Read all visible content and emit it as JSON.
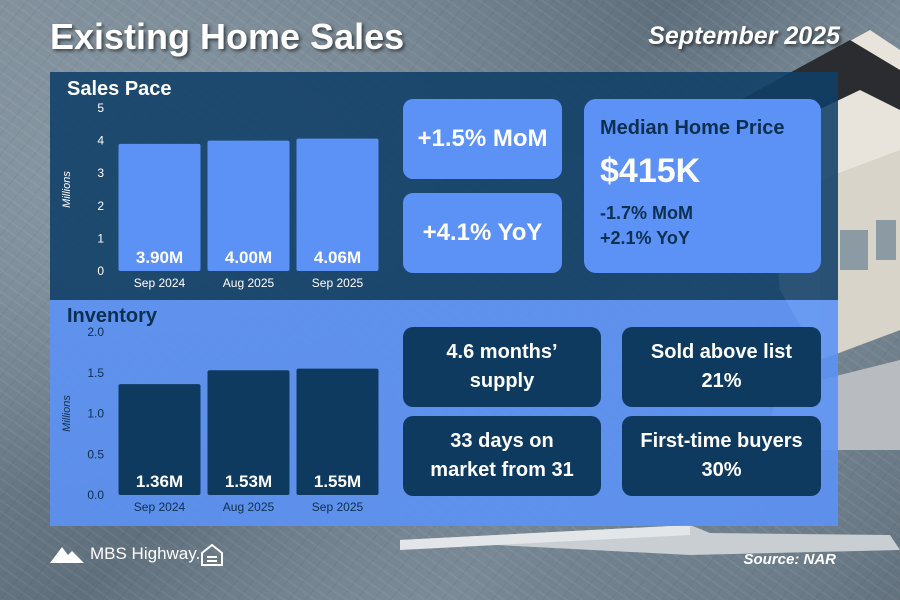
{
  "header": {
    "title": "Existing Home Sales",
    "date": "September 2025"
  },
  "sales_section": {
    "title": "Sales Pace"
  },
  "inventory_section": {
    "title": "Inventory"
  },
  "chart_data": [
    {
      "type": "bar",
      "title": "Sales Pace",
      "ylabel": "Millions",
      "categories": [
        "Sep 2024",
        "Aug 2025",
        "Sep 2025"
      ],
      "values": [
        3.9,
        4.0,
        4.06
      ],
      "data_labels": [
        "3.90M",
        "4.00M",
        "4.06M"
      ],
      "ylim": [
        0,
        5
      ],
      "yticks": [
        "0",
        "1",
        "2",
        "3",
        "4",
        "5"
      ],
      "grid": false,
      "bar_color": "#5c92f5",
      "label_color": "#ffffff"
    },
    {
      "type": "bar",
      "title": "Inventory",
      "ylabel": "Millions",
      "categories": [
        "Sep 2024",
        "Aug 2025",
        "Sep 2025"
      ],
      "values": [
        1.36,
        1.53,
        1.55
      ],
      "data_labels": [
        "1.36M",
        "1.53M",
        "1.55M"
      ],
      "ylim": [
        0,
        2.0
      ],
      "yticks": [
        "0.0",
        "0.5",
        "1.0",
        "1.5",
        "2.0"
      ],
      "grid": false,
      "bar_color": "#0e3a60",
      "label_color": "#ffffff"
    }
  ],
  "sales_cards": {
    "mom": "+1.5% MoM",
    "yoy": "+4.1% YoY"
  },
  "median_price": {
    "title": "Median Home Price",
    "value": "$415K",
    "mom": "-1.7% MoM",
    "yoy": "+2.1% YoY"
  },
  "inventory_cards": {
    "supply_line1": "4.6 months’",
    "supply_line2": "supply",
    "above_list_line1": "Sold above list",
    "above_list_line2": "21%",
    "days_line1": "33 days on",
    "days_line2": "market from 31",
    "first_time_line1": "First-time buyers",
    "first_time_line2": "30%"
  },
  "footer": {
    "logo_text": "MBS Highway.",
    "source": "Source: NAR"
  },
  "colors": {
    "dark_navy": "#0e3a60",
    "accent_blue": "#5c92f5"
  }
}
